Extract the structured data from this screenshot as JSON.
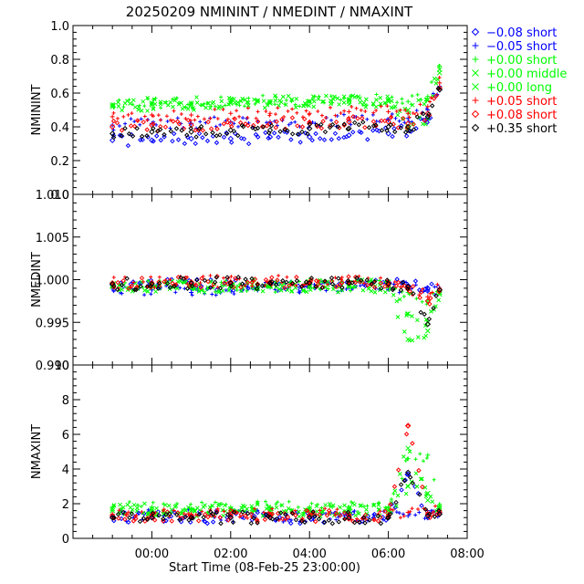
{
  "chart_data": {
    "type": "scatter",
    "title": "20250209 NMININT / NMEDINT / NMAXINT",
    "xlabel": "Start Time (08-Feb-25 23:00:00)",
    "x_units": "hours since 08-Feb-25 23:00:00",
    "xlim": [
      -1.0,
      9.0
    ],
    "xticks": [
      1,
      3,
      5,
      7,
      9
    ],
    "xtick_labels": [
      "00:00",
      "02:00",
      "04:00",
      "06:00",
      "08:00"
    ],
    "legend": {
      "placement": "top-right outside",
      "entries": [
        {
          "label": "−0.08 short",
          "marker": "diamond",
          "color": "#0000ff"
        },
        {
          "label": "−0.05 short",
          "marker": "plus",
          "color": "#0000ff"
        },
        {
          "label": "+0.00 short",
          "marker": "plus",
          "color": "#00ff00"
        },
        {
          "label": "+0.00 middle",
          "marker": "cross",
          "color": "#00ff00"
        },
        {
          "label": "+0.00 long",
          "marker": "cross",
          "color": "#00ff00"
        },
        {
          "label": "+0.05 short",
          "marker": "plus",
          "color": "#ff0000"
        },
        {
          "label": "+0.08 short",
          "marker": "diamond",
          "color": "#ff0000"
        },
        {
          "label": "+0.35 short",
          "marker": "diamond",
          "color": "#000000"
        }
      ]
    },
    "panels": [
      {
        "ylabel": "NMININT",
        "ylim": [
          0.0,
          1.0
        ],
        "yticks": [
          0.0,
          0.2,
          0.4,
          0.6,
          0.8,
          1.0
        ],
        "ytick_labels": [
          "0.0",
          "0.2",
          "0.4",
          "0.6",
          "0.8",
          "1.0"
        ],
        "x": [
          0.0,
          1.0,
          2.0,
          3.0,
          4.0,
          5.0,
          6.0,
          7.0,
          7.5,
          8.0,
          8.3
        ],
        "series": [
          {
            "name": "−0.08 short",
            "marker": "diamond",
            "color": "#0000ff",
            "values": [
              0.32,
              0.32,
              0.33,
              0.33,
              0.34,
              0.34,
              0.35,
              0.36,
              0.38,
              0.45,
              0.62
            ]
          },
          {
            "name": "−0.05 short",
            "marker": "plus",
            "color": "#0000ff",
            "values": [
              0.41,
              0.42,
              0.42,
              0.43,
              0.43,
              0.43,
              0.44,
              0.44,
              0.45,
              0.5,
              0.64
            ]
          },
          {
            "name": "+0.00 short",
            "marker": "plus",
            "color": "#00ff00",
            "values": [
              0.53,
              0.54,
              0.54,
              0.55,
              0.55,
              0.55,
              0.56,
              0.56,
              0.55,
              0.58,
              0.76
            ]
          },
          {
            "name": "+0.00 middle",
            "marker": "cross",
            "color": "#00ff00",
            "values": [
              0.53,
              0.54,
              0.54,
              0.55,
              0.55,
              0.55,
              0.56,
              0.56,
              0.5,
              0.56,
              0.74
            ]
          },
          {
            "name": "+0.00 long",
            "marker": "cross",
            "color": "#00ff00",
            "values": [
              0.52,
              0.53,
              0.53,
              0.54,
              0.54,
              0.55,
              0.55,
              0.55,
              0.4,
              0.45,
              0.72
            ]
          },
          {
            "name": "+0.05 short",
            "marker": "plus",
            "color": "#ff0000",
            "values": [
              0.46,
              0.47,
              0.47,
              0.48,
              0.48,
              0.48,
              0.49,
              0.49,
              0.48,
              0.52,
              0.66
            ]
          },
          {
            "name": "+0.08 short",
            "marker": "diamond",
            "color": "#ff0000",
            "values": [
              0.4,
              0.41,
              0.41,
              0.42,
              0.42,
              0.42,
              0.43,
              0.43,
              0.42,
              0.48,
              0.63
            ]
          },
          {
            "name": "+0.35 short",
            "marker": "diamond",
            "color": "#000000",
            "values": [
              0.36,
              0.37,
              0.37,
              0.38,
              0.38,
              0.39,
              0.39,
              0.4,
              0.4,
              0.46,
              0.62
            ]
          }
        ]
      },
      {
        "ylabel": "NMEDINT",
        "ylim": [
          0.99,
          1.01
        ],
        "yticks": [
          0.99,
          0.995,
          1.0,
          1.005,
          1.01
        ],
        "ytick_labels": [
          "0.990",
          "0.995",
          "1.000",
          "1.005",
          "1.010"
        ],
        "x": [
          0.0,
          1.0,
          2.0,
          3.0,
          4.0,
          5.0,
          6.0,
          7.0,
          7.5,
          8.0,
          8.3
        ],
        "series": [
          {
            "name": "−0.08 short",
            "marker": "diamond",
            "color": "#0000ff",
            "values": [
              0.9994,
              0.9993,
              0.9994,
              0.9994,
              0.9995,
              0.9995,
              0.9995,
              0.9995,
              0.9993,
              0.999,
              0.9988
            ]
          },
          {
            "name": "−0.05 short",
            "marker": "plus",
            "color": "#0000ff",
            "values": [
              0.999,
              0.9988,
              0.9985,
              0.999,
              0.9991,
              0.9991,
              0.9991,
              0.9992,
              0.9991,
              0.9988,
              0.9986
            ]
          },
          {
            "name": "+0.00 short",
            "marker": "plus",
            "color": "#00ff00",
            "values": [
              0.9992,
              0.9992,
              0.9992,
              0.9992,
              0.9992,
              0.9993,
              0.9993,
              0.9993,
              0.9985,
              0.9975,
              0.9987
            ]
          },
          {
            "name": "+0.00 middle",
            "marker": "cross",
            "color": "#00ff00",
            "values": [
              0.9993,
              0.9993,
              0.9993,
              0.9993,
              0.9993,
              0.9993,
              0.9993,
              0.9993,
              0.996,
              0.995,
              0.9985
            ]
          },
          {
            "name": "+0.00 long",
            "marker": "cross",
            "color": "#00ff00",
            "values": [
              0.9992,
              0.9992,
              0.9992,
              0.9992,
              0.9992,
              0.9992,
              0.9992,
              0.9992,
              0.993,
              0.994,
              0.9983
            ]
          },
          {
            "name": "+0.05 short",
            "marker": "plus",
            "color": "#ff0000",
            "values": [
              0.9996,
              0.9997,
              0.9998,
              0.9998,
              0.9998,
              0.9998,
              0.9998,
              0.9997,
              0.999,
              0.998,
              0.999
            ]
          },
          {
            "name": "+0.08 short",
            "marker": "diamond",
            "color": "#ff0000",
            "values": [
              0.9996,
              0.9996,
              0.9997,
              0.9997,
              0.9997,
              0.9997,
              0.9997,
              0.9996,
              0.999,
              0.9975,
              0.9988
            ]
          },
          {
            "name": "+0.35 short",
            "marker": "diamond",
            "color": "#000000",
            "values": [
              0.9995,
              0.9995,
              0.9996,
              0.9996,
              0.9996,
              0.9996,
              0.9996,
              0.9995,
              0.9992,
              0.9948,
              0.9988
            ]
          }
        ]
      },
      {
        "ylabel": "NMAXINT",
        "ylim": [
          0,
          10
        ],
        "yticks": [
          0,
          2,
          4,
          6,
          8,
          10
        ],
        "ytick_labels": [
          "0",
          "2",
          "4",
          "6",
          "8",
          "10"
        ],
        "x": [
          0.0,
          1.0,
          2.0,
          3.0,
          4.0,
          5.0,
          6.0,
          7.0,
          7.5,
          8.0,
          8.3
        ],
        "series": [
          {
            "name": "−0.08 short",
            "marker": "diamond",
            "color": "#0000ff",
            "values": [
              1.2,
              1.2,
              1.2,
              1.2,
              1.2,
              1.2,
              1.2,
              1.2,
              3.7,
              1.3,
              1.4
            ]
          },
          {
            "name": "−0.05 short",
            "marker": "plus",
            "color": "#0000ff",
            "values": [
              1.3,
              1.3,
              1.3,
              1.3,
              1.3,
              1.3,
              1.3,
              1.3,
              1.3,
              1.4,
              1.5
            ]
          },
          {
            "name": "+0.00 short",
            "marker": "plus",
            "color": "#00ff00",
            "values": [
              1.8,
              1.8,
              1.7,
              1.8,
              1.8,
              1.8,
              1.8,
              1.8,
              4.6,
              4.8,
              1.9
            ]
          },
          {
            "name": "+0.00 middle",
            "marker": "cross",
            "color": "#00ff00",
            "values": [
              1.7,
              1.7,
              1.6,
              1.7,
              1.7,
              1.7,
              1.7,
              1.7,
              5.2,
              2.2,
              1.8
            ]
          },
          {
            "name": "+0.00 long",
            "marker": "cross",
            "color": "#00ff00",
            "values": [
              1.6,
              1.6,
              1.6,
              1.6,
              1.6,
              1.6,
              1.6,
              1.6,
              3.0,
              2.6,
              1.7
            ]
          },
          {
            "name": "+0.05 short",
            "marker": "plus",
            "color": "#ff0000",
            "values": [
              1.4,
              1.4,
              1.4,
              1.4,
              1.4,
              1.4,
              1.4,
              1.4,
              1.5,
              1.5,
              1.6
            ]
          },
          {
            "name": "+0.08 short",
            "marker": "diamond",
            "color": "#ff0000",
            "values": [
              1.3,
              1.3,
              1.3,
              1.3,
              1.3,
              1.3,
              1.3,
              1.3,
              6.5,
              1.4,
              1.5
            ]
          },
          {
            "name": "+0.35 short",
            "marker": "diamond",
            "color": "#000000",
            "values": [
              1.2,
              1.2,
              1.2,
              1.2,
              1.2,
              1.2,
              1.2,
              1.2,
              3.8,
              1.3,
              1.4
            ]
          }
        ]
      }
    ]
  }
}
